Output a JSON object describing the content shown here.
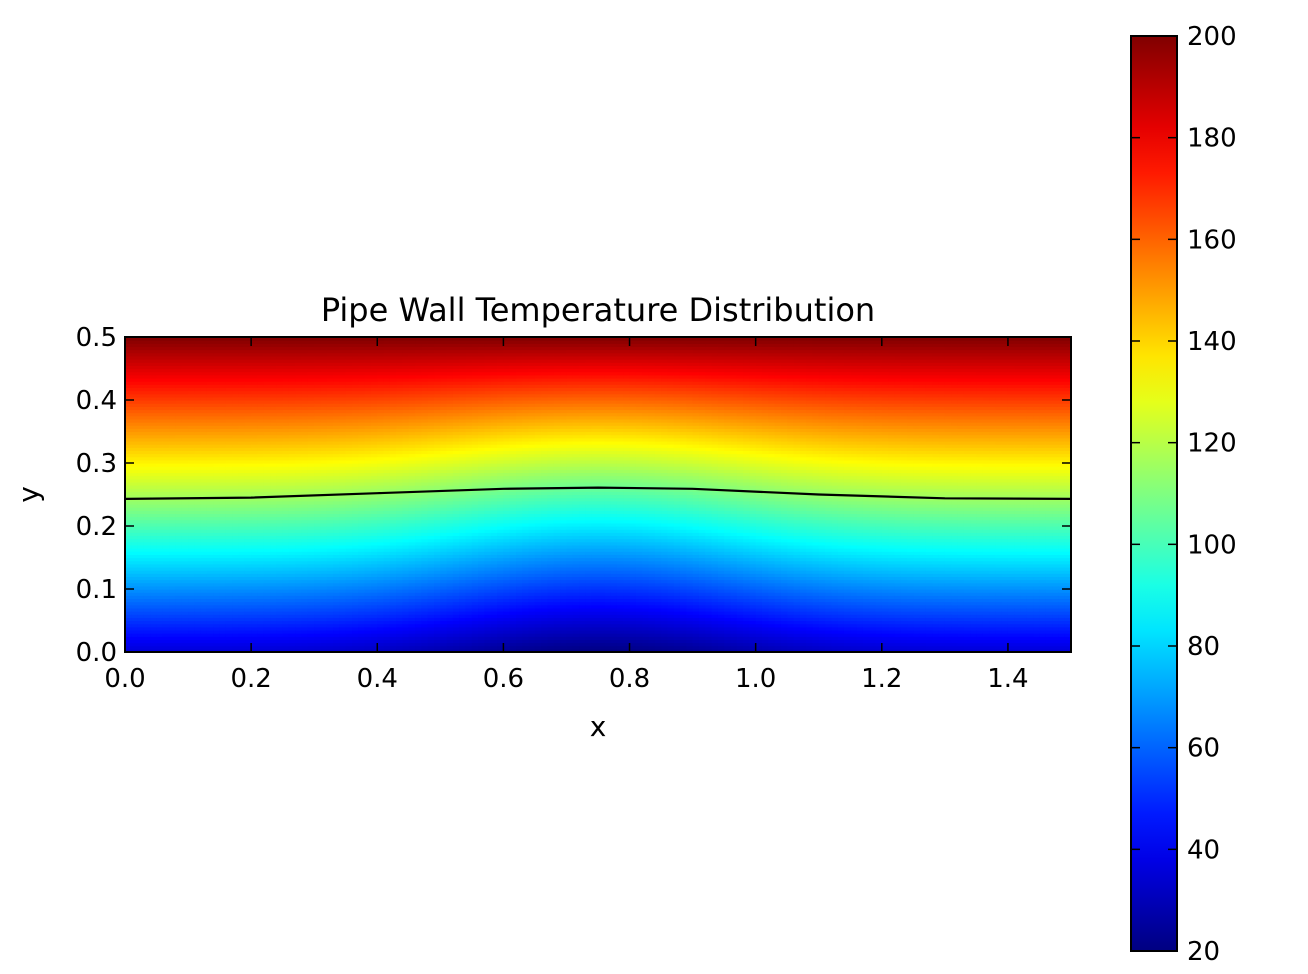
{
  "chart_data": {
    "type": "heatmap",
    "title": "Pipe Wall Temperature Distribution",
    "xlabel": "x",
    "ylabel": "y",
    "xlim": [
      0.0,
      1.5
    ],
    "ylim": [
      0.0,
      0.5
    ],
    "x_ticks": [
      "0.0",
      "0.2",
      "0.4",
      "0.6",
      "0.8",
      "1.0",
      "1.2",
      "1.4"
    ],
    "x_tick_values": [
      0.0,
      0.2,
      0.4,
      0.6,
      0.8,
      1.0,
      1.2,
      1.4
    ],
    "y_ticks": [
      "0.0",
      "0.1",
      "0.2",
      "0.3",
      "0.4",
      "0.5"
    ],
    "y_tick_values": [
      0.0,
      0.1,
      0.2,
      0.3,
      0.4,
      0.5
    ],
    "colormap": "jet",
    "colorbar": {
      "min": 20,
      "max": 200,
      "ticks": [
        "20",
        "40",
        "60",
        "80",
        "100",
        "120",
        "140",
        "160",
        "180",
        "200"
      ],
      "tick_values": [
        20,
        40,
        60,
        80,
        100,
        120,
        140,
        160,
        180,
        200
      ]
    },
    "field_description": {
      "top_value": 200,
      "bottom_min_value": 20,
      "bottom_min_at_x": 0.75,
      "bottom_edge_value": 35
    },
    "contour_line": {
      "color": "#000000",
      "x": [
        0.0,
        0.2,
        0.4,
        0.6,
        0.75,
        0.9,
        1.1,
        1.3,
        1.5
      ],
      "y": [
        0.243,
        0.245,
        0.252,
        0.259,
        0.261,
        0.259,
        0.25,
        0.244,
        0.243
      ]
    },
    "grid": false
  }
}
